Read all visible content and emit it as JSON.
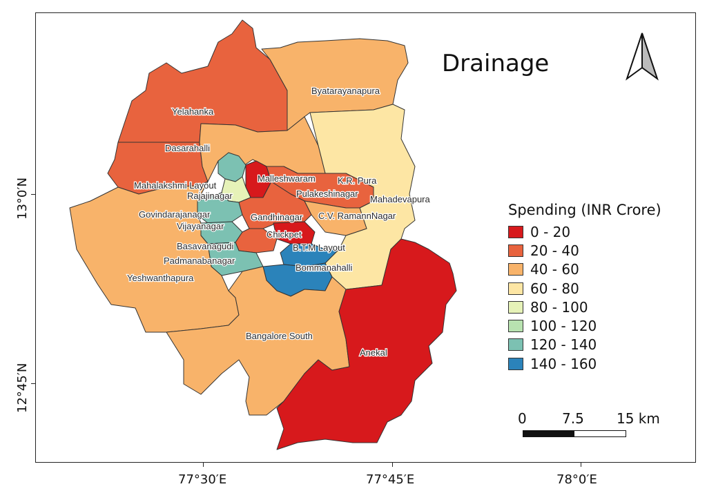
{
  "map": {
    "title": "Drainage",
    "legend": {
      "title": "Spending (INR Crore)",
      "classes": [
        {
          "label": "0 - 20",
          "color": "#d7191c"
        },
        {
          "label": "20 - 40",
          "color": "#e8633e"
        },
        {
          "label": "40 - 60",
          "color": "#f8b36a"
        },
        {
          "label": "60 - 80",
          "color": "#fde6a4"
        },
        {
          "label": "80 - 100",
          "color": "#e6f2b8"
        },
        {
          "label": "100 - 120",
          "color": "#b8e2b0"
        },
        {
          "label": "120 - 140",
          "color": "#7cc1b2"
        },
        {
          "label": "140 - 160",
          "color": "#2b83ba"
        }
      ]
    },
    "scale_bar": {
      "labels": [
        "0",
        "7.5",
        "15 km"
      ]
    },
    "axes": {
      "x_ticks": [
        "77°30′E",
        "77°45′E",
        "78°0′E"
      ],
      "y_ticks": [
        "13°0′N",
        "12°45′N"
      ]
    },
    "places": [
      "Yelahanka",
      "Byatarayanapura",
      "Dasarahalli",
      "Mahalakshmi Layout",
      "Malleshwaram",
      "K.R. Pura",
      "Pulakeshinagar",
      "Rajajinagar",
      "Mahadevapura",
      "Govindarajanagar",
      "Gandhinagar",
      "C.V. RamannNagar",
      "Vijayanagar",
      "Chickpet",
      "Basavanagudi",
      "B.T.M Layout",
      "Padmanabanagar",
      "Bommanahalli",
      "Yeshwanthapura",
      "Bangalore South",
      "Anekal"
    ]
  }
}
